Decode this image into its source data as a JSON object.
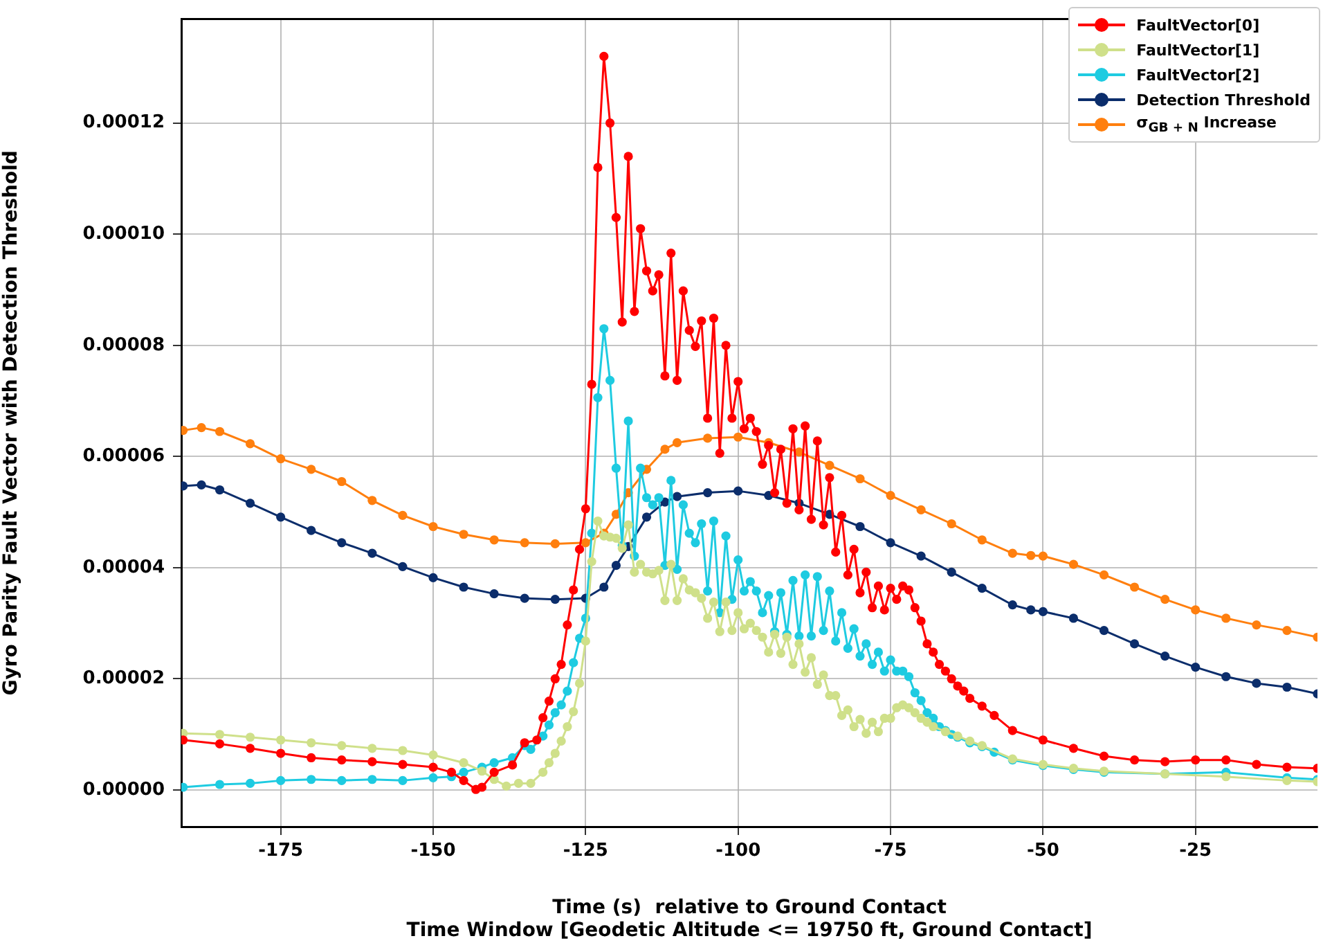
{
  "chart_data": {
    "type": "line",
    "xlabel": "Time (s)  relative to Ground Contact\nTime Window [Geodetic Altitude <= 19750 ft, Ground Contact]",
    "ylabel": "Gyro Parity Fault Vector with Detection Threshold",
    "xlim": [
      -191.3,
      -5
    ],
    "xticks": [
      -175,
      -150,
      -125,
      -100,
      -75,
      -50,
      -25
    ],
    "ylim": [
      -6.6e-06,
      0.0001387
    ],
    "yticks": [
      {
        "value": 0,
        "label": "0.00000"
      },
      {
        "value": 2e-05,
        "label": "0.00002"
      },
      {
        "value": 4e-05,
        "label": "0.00004"
      },
      {
        "value": 6e-05,
        "label": "0.00006"
      },
      {
        "value": 8e-05,
        "label": "0.00008"
      },
      {
        "value": 0.0001,
        "label": "0.00010"
      },
      {
        "value": 0.00012,
        "label": "0.00012"
      }
    ],
    "grid": true,
    "legend": "top right",
    "marker": "circle",
    "line_style": "solid",
    "series": [
      {
        "name": "FaultVector[0]",
        "color": "#ff0000",
        "x": [
          -191,
          -185,
          -180,
          -175,
          -170,
          -165,
          -160,
          -155,
          -150,
          -147,
          -145,
          -143,
          -142,
          -140,
          -137,
          -135,
          -133,
          -132,
          -131,
          -130,
          -129,
          -128,
          -127,
          -126,
          -125,
          -124,
          -123,
          -122,
          -121,
          -120,
          -119,
          -118,
          -117,
          -116,
          -115,
          -114,
          -113,
          -112,
          -111,
          -110,
          -109,
          -108,
          -107,
          -106,
          -105,
          -104,
          -103,
          -102,
          -101,
          -100,
          -99,
          -98,
          -97,
          -96,
          -95,
          -94,
          -93,
          -92,
          -91,
          -90,
          -89,
          -88,
          -87,
          -86,
          -85,
          -84,
          -83,
          -82,
          -81,
          -80,
          -79,
          -78,
          -77,
          -76,
          -75,
          -74,
          -73,
          -72,
          -71,
          -70,
          -69,
          -68,
          -67,
          -66,
          -65,
          -64,
          -63,
          -62,
          -60,
          -58,
          -55,
          -50,
          -45,
          -40,
          -35,
          -30,
          -25,
          -20,
          -15,
          -10,
          -5
        ],
        "values": [
          9e-06,
          8.3e-06,
          7.5e-06,
          6.6e-06,
          5.8e-06,
          5.4e-06,
          5.1e-06,
          4.6e-06,
          4.1e-06,
          3.2e-06,
          1.7e-06,
          1e-07,
          5e-07,
          3.2e-06,
          4.5e-06,
          8.5e-06,
          9e-06,
          1.3e-05,
          1.6e-05,
          2e-05,
          2.26e-05,
          2.97e-05,
          3.6e-05,
          4.33e-05,
          5.06e-05,
          7.3e-05,
          0.000112,
          0.000132,
          0.00012,
          0.000103,
          8.42e-05,
          0.000114,
          8.61e-05,
          0.000101,
          9.34e-05,
          8.98e-05,
          9.27e-05,
          7.45e-05,
          9.66e-05,
          7.37e-05,
          8.98e-05,
          8.27e-05,
          7.98e-05,
          8.44e-05,
          6.69e-05,
          8.49e-05,
          6.06e-05,
          8e-05,
          6.69e-05,
          7.35e-05,
          6.5e-05,
          6.69e-05,
          6.45e-05,
          5.86e-05,
          6.2e-05,
          5.35e-05,
          6.13e-05,
          5.16e-05,
          6.5e-05,
          5.04e-05,
          6.55e-05,
          4.87e-05,
          6.28e-05,
          4.77e-05,
          5.62e-05,
          4.28e-05,
          4.94e-05,
          3.87e-05,
          4.33e-05,
          3.55e-05,
          3.92e-05,
          3.28e-05,
          3.67e-05,
          3.24e-05,
          3.63e-05,
          3.43e-05,
          3.67e-05,
          3.6e-05,
          3.28e-05,
          3.04e-05,
          2.63e-05,
          2.48e-05,
          2.26e-05,
          2.14e-05,
          2e-05,
          1.87e-05,
          1.78e-05,
          1.65e-05,
          1.51e-05,
          1.34e-05,
          1.07e-05,
          9e-06,
          7.5e-06,
          6.1e-06,
          5.4e-06,
          5.1e-06,
          5.4e-06,
          5.4e-06,
          4.6e-06,
          4.1e-06,
          3.9e-06
        ]
      },
      {
        "name": "FaultVector[1]",
        "color": "#cfe08a",
        "x": [
          -191,
          -185,
          -180,
          -175,
          -170,
          -165,
          -160,
          -155,
          -150,
          -145,
          -142,
          -140,
          -138,
          -136,
          -134,
          -132,
          -131,
          -130,
          -129,
          -128,
          -127,
          -126,
          -125,
          -124,
          -123,
          -122,
          -121,
          -120,
          -119,
          -118,
          -117,
          -116,
          -115,
          -114,
          -113,
          -112,
          -111,
          -110,
          -109,
          -108,
          -107,
          -106,
          -105,
          -104,
          -103,
          -102,
          -101,
          -100,
          -99,
          -98,
          -97,
          -96,
          -95,
          -94,
          -93,
          -92,
          -91,
          -90,
          -89,
          -88,
          -87,
          -86,
          -85,
          -84,
          -83,
          -82,
          -81,
          -80,
          -79,
          -78,
          -77,
          -76,
          -75,
          -74,
          -73,
          -72,
          -71,
          -70,
          -69,
          -68,
          -66,
          -64,
          -62,
          -60,
          -55,
          -50,
          -45,
          -40,
          -30,
          -20,
          -10,
          -5
        ],
        "values": [
          1.02e-05,
          1e-05,
          9.5e-06,
          9e-06,
          8.5e-06,
          8e-06,
          7.5e-06,
          7.1e-06,
          6.3e-06,
          4.9e-06,
          3.4e-06,
          1.9e-06,
          7e-07,
          1.2e-06,
          1.2e-06,
          3.2e-06,
          4.9e-06,
          6.6e-06,
          8.8e-06,
          1.14e-05,
          1.41e-05,
          1.92e-05,
          2.68e-05,
          4.11e-05,
          4.84e-05,
          4.57e-05,
          4.55e-05,
          4.53e-05,
          4.35e-05,
          4.77e-05,
          3.92e-05,
          4.06e-05,
          3.92e-05,
          3.89e-05,
          3.95e-05,
          3.41e-05,
          4.06e-05,
          3.41e-05,
          3.8e-05,
          3.6e-05,
          3.55e-05,
          3.45e-05,
          3.09e-05,
          3.38e-05,
          2.85e-05,
          3.38e-05,
          2.87e-05,
          3.19e-05,
          2.9e-05,
          3e-05,
          2.87e-05,
          2.75e-05,
          2.48e-05,
          2.8e-05,
          2.46e-05,
          2.75e-05,
          2.26e-05,
          2.63e-05,
          2.12e-05,
          2.38e-05,
          1.9e-05,
          2.07e-05,
          1.7e-05,
          1.7e-05,
          1.34e-05,
          1.44e-05,
          1.14e-05,
          1.27e-05,
          1.02e-05,
          1.22e-05,
          1.05e-05,
          1.29e-05,
          1.29e-05,
          1.48e-05,
          1.53e-05,
          1.48e-05,
          1.39e-05,
          1.29e-05,
          1.22e-05,
          1.14e-05,
          1.05e-05,
          9.7e-06,
          8.8e-06,
          8e-06,
          5.6e-06,
          4.6e-06,
          3.9e-06,
          3.4e-06,
          2.9e-06,
          2.4e-06,
          1.7e-06,
          1.5e-06
        ]
      },
      {
        "name": "FaultVector[2]",
        "color": "#1ecbe1",
        "x": [
          -191,
          -185,
          -180,
          -175,
          -170,
          -165,
          -160,
          -155,
          -150,
          -147,
          -145,
          -142,
          -140,
          -137,
          -135,
          -134,
          -132,
          -131,
          -130,
          -129,
          -128,
          -127,
          -126,
          -125,
          -124,
          -123,
          -122,
          -121,
          -120,
          -119,
          -118,
          -117,
          -116,
          -115,
          -114,
          -113,
          -112,
          -111,
          -110,
          -109,
          -108,
          -107,
          -106,
          -105,
          -104,
          -103,
          -102,
          -101,
          -100,
          -99,
          -98,
          -97,
          -96,
          -95,
          -94,
          -93,
          -92,
          -91,
          -90,
          -89,
          -88,
          -87,
          -86,
          -85,
          -84,
          -83,
          -82,
          -81,
          -80,
          -79,
          -78,
          -77,
          -76,
          -75,
          -74,
          -73,
          -72,
          -71,
          -70,
          -69,
          -68,
          -67,
          -66,
          -65,
          -64,
          -62,
          -60,
          -58,
          -55,
          -50,
          -45,
          -40,
          -30,
          -20,
          -10,
          -5
        ],
        "values": [
          5e-07,
          1e-06,
          1.2e-06,
          1.7e-06,
          1.9e-06,
          1.7e-06,
          1.9e-06,
          1.7e-06,
          2.2e-06,
          2.4e-06,
          3.2e-06,
          4.1e-06,
          4.9e-06,
          5.8e-06,
          8e-06,
          7.3e-06,
          9.7e-06,
          1.17e-05,
          1.39e-05,
          1.53e-05,
          1.78e-05,
          2.29e-05,
          2.73e-05,
          3.09e-05,
          4.62e-05,
          7.06e-05,
          8.3e-05,
          7.37e-05,
          5.79e-05,
          4.4e-05,
          6.64e-05,
          4.21e-05,
          5.79e-05,
          5.26e-05,
          5.13e-05,
          5.26e-05,
          4.04e-05,
          5.57e-05,
          3.97e-05,
          5.13e-05,
          4.62e-05,
          4.45e-05,
          4.79e-05,
          3.58e-05,
          4.84e-05,
          3.19e-05,
          4.57e-05,
          3.43e-05,
          4.14e-05,
          3.58e-05,
          3.75e-05,
          3.58e-05,
          3.19e-05,
          3.5e-05,
          2.85e-05,
          3.55e-05,
          2.8e-05,
          3.77e-05,
          2.77e-05,
          3.87e-05,
          2.77e-05,
          3.84e-05,
          2.87e-05,
          3.58e-05,
          2.68e-05,
          3.19e-05,
          2.55e-05,
          2.9e-05,
          2.41e-05,
          2.63e-05,
          2.26e-05,
          2.48e-05,
          2.14e-05,
          2.34e-05,
          2.14e-05,
          2.14e-05,
          2.04e-05,
          1.75e-05,
          1.61e-05,
          1.39e-05,
          1.29e-05,
          1.14e-05,
          1.07e-05,
          1e-05,
          9.5e-06,
          8.5e-06,
          7.8e-06,
          6.8e-06,
          5.4e-06,
          4.4e-06,
          3.7e-06,
          3.2e-06,
          2.9e-06,
          3.2e-06,
          2.2e-06,
          1.9e-06
        ]
      },
      {
        "name": "Detection Threshold",
        "color": "#0b2d6b",
        "x": [
          -191,
          -188,
          -185,
          -180,
          -175,
          -170,
          -165,
          -160,
          -155,
          -150,
          -145,
          -140,
          -135,
          -130,
          -125,
          -122,
          -120,
          -118,
          -115,
          -112,
          -110,
          -105,
          -100,
          -95,
          -90,
          -85,
          -80,
          -75,
          -70,
          -65,
          -60,
          -55,
          -52,
          -50,
          -45,
          -40,
          -35,
          -30,
          -25,
          -20,
          -15,
          -10,
          -5
        ],
        "values": [
          5.47e-05,
          5.49e-05,
          5.4e-05,
          5.16e-05,
          4.91e-05,
          4.67e-05,
          4.45e-05,
          4.26e-05,
          4.02e-05,
          3.82e-05,
          3.65e-05,
          3.53e-05,
          3.45e-05,
          3.43e-05,
          3.45e-05,
          3.65e-05,
          4.04e-05,
          4.38e-05,
          4.91e-05,
          5.18e-05,
          5.28e-05,
          5.35e-05,
          5.38e-05,
          5.3e-05,
          5.16e-05,
          4.96e-05,
          4.74e-05,
          4.45e-05,
          4.21e-05,
          3.92e-05,
          3.63e-05,
          3.33e-05,
          3.24e-05,
          3.21e-05,
          3.09e-05,
          2.87e-05,
          2.63e-05,
          2.41e-05,
          2.21e-05,
          2.04e-05,
          1.92e-05,
          1.85e-05,
          1.73e-05
        ]
      },
      {
        "name": "σ$_{GB + N}$ Increase",
        "color": "#ff7f0e",
        "x": [
          -191,
          -188,
          -185,
          -180,
          -175,
          -170,
          -165,
          -160,
          -155,
          -150,
          -145,
          -140,
          -135,
          -130,
          -125,
          -122,
          -120,
          -118,
          -115,
          -112,
          -110,
          -105,
          -100,
          -95,
          -90,
          -85,
          -80,
          -75,
          -70,
          -65,
          -60,
          -55,
          -52,
          -50,
          -45,
          -40,
          -35,
          -30,
          -25,
          -20,
          -15,
          -10,
          -5
        ],
        "values": [
          6.47e-05,
          6.52e-05,
          6.45e-05,
          6.23e-05,
          5.96e-05,
          5.77e-05,
          5.55e-05,
          5.21e-05,
          4.94e-05,
          4.74e-05,
          4.6e-05,
          4.5e-05,
          4.45e-05,
          4.43e-05,
          4.45e-05,
          4.62e-05,
          4.96e-05,
          5.35e-05,
          5.77e-05,
          6.13e-05,
          6.25e-05,
          6.33e-05,
          6.35e-05,
          6.25e-05,
          6.08e-05,
          5.84e-05,
          5.6e-05,
          5.3e-05,
          5.04e-05,
          4.79e-05,
          4.5e-05,
          4.26e-05,
          4.22e-05,
          4.21e-05,
          4.06e-05,
          3.87e-05,
          3.65e-05,
          3.43e-05,
          3.24e-05,
          3.09e-05,
          2.97e-05,
          2.87e-05,
          2.75e-05
        ]
      }
    ]
  }
}
